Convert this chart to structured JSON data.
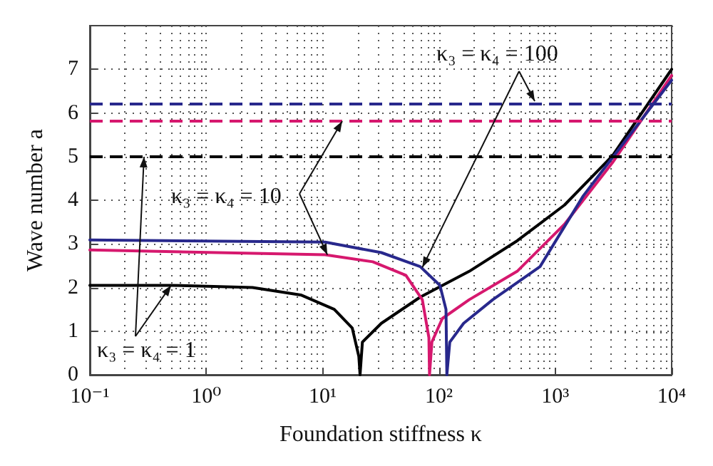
{
  "chart_data": {
    "type": "line",
    "xlabel": "Foundation stiffness κ",
    "ylabel": "Wave number a",
    "log": "x",
    "xlim": [
      0.1,
      10000
    ],
    "xticks": [
      {
        "value": 0.1,
        "label": "10⁻¹"
      },
      {
        "value": 1,
        "label": "10⁰"
      },
      {
        "value": 10,
        "label": "10¹"
      },
      {
        "value": 100,
        "label": "10²"
      },
      {
        "value": 1000,
        "label": "10³"
      },
      {
        "value": 10000,
        "label": "10⁴"
      }
    ],
    "ylim": [
      0,
      8
    ],
    "yticks": [
      0,
      1,
      2,
      3,
      4,
      5,
      6,
      7
    ],
    "grid": true,
    "marker": "none",
    "line_style": "solid",
    "series": [
      {
        "color": "#000000",
        "x": [
          0.1,
          0.5,
          2.5,
          6.5,
          12.6,
          18,
          20.5,
          21,
          22,
          32,
          69,
          182,
          470,
          1200,
          3100,
          10000
        ],
        "values": [
          2.05,
          2.05,
          2.0,
          1.83,
          1.5,
          1.07,
          0.42,
          0,
          0.75,
          1.18,
          1.78,
          2.37,
          3.07,
          3.89,
          5.02,
          7.0
        ]
      },
      {
        "color": "#d6186e",
        "x": [
          0.1,
          10.5,
          27,
          52,
          72,
          82,
          83,
          87,
          107,
          182,
          470,
          1200,
          3100,
          10000
        ],
        "values": [
          2.86,
          2.75,
          2.59,
          2.28,
          1.72,
          0.85,
          0,
          0.75,
          1.29,
          1.72,
          2.37,
          3.45,
          4.86,
          6.86
        ]
      },
      {
        "color": "#28288c",
        "x": [
          0.1,
          10.5,
          32,
          69,
          102,
          115,
          117,
          124,
          163,
          290,
          740,
          1740,
          10000
        ],
        "values": [
          3.09,
          3.04,
          2.8,
          2.48,
          2.05,
          1.5,
          0,
          0.75,
          1.18,
          1.72,
          2.48,
          4.1,
          6.75
        ]
      }
    ],
    "ref_lines": [
      {
        "axis": "y",
        "value": 5.02,
        "color": "#000000",
        "line_style": "dashed"
      },
      {
        "axis": "y",
        "value": 5.81,
        "color": "#d6186e",
        "line_style": "dashed"
      },
      {
        "axis": "y",
        "value": 6.2,
        "color": "#28288c",
        "line_style": "dashed"
      }
    ],
    "annotations": [
      {
        "text": "κ₃ = κ₄ = 100",
        "x": 72,
        "y": 2.46
      },
      {
        "text": "κ₃ = κ₄ = 10",
        "x": 11,
        "y": 2.75
      },
      {
        "text": "κ₃ = κ₄ = 1",
        "x": 0.5,
        "y": 2.05
      }
    ]
  }
}
